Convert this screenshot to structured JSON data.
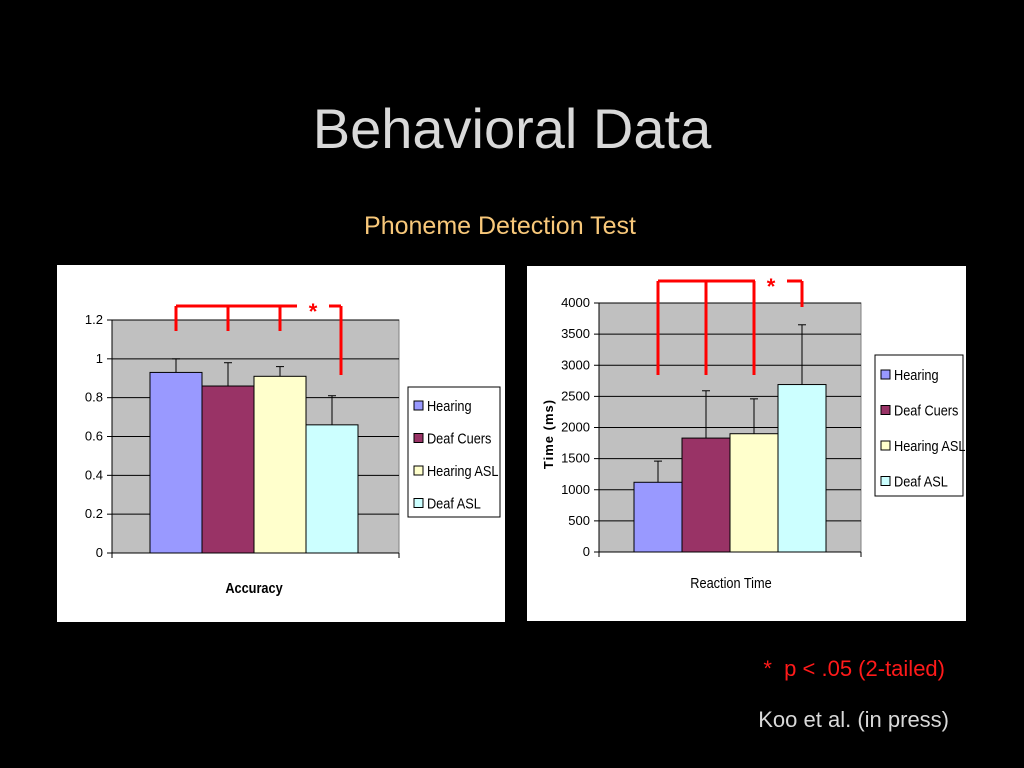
{
  "slide": {
    "title": "Behavioral Data",
    "subtitle": "Phoneme Detection Test",
    "footnote": "*  p < .05 (2-tailed)",
    "citation": "Koo et al. (in press)"
  },
  "colors": {
    "background": "#000000",
    "title": "#d9d9d9",
    "subtitle": "#f8c87a",
    "footnote": "#ff1a1a",
    "plot_area": "#c0c0c0",
    "significance": "#ff0000"
  },
  "chart_data": [
    {
      "type": "bar",
      "xlabel": "Accuracy",
      "ylabel": "",
      "ylim": [
        0,
        1.2
      ],
      "yticks": [
        "0",
        "0.2",
        "0.4",
        "0.6",
        "0.8",
        "1",
        "1.2"
      ],
      "grid": true,
      "legend_position": "right",
      "significance_marker": "*",
      "significance_groups": [
        "Hearing",
        "Deaf Cuers",
        "Hearing ASL",
        "Deaf ASL"
      ],
      "series": [
        {
          "name": "Hearing",
          "values": [
            0.93
          ],
          "error": [
            0.07
          ],
          "color": "#9999ff"
        },
        {
          "name": "Deaf Cuers",
          "values": [
            0.86
          ],
          "error": [
            0.12
          ],
          "color": "#993366"
        },
        {
          "name": "Hearing ASL",
          "values": [
            0.91
          ],
          "error": [
            0.05
          ],
          "color": "#ffffcc"
        },
        {
          "name": "Deaf ASL",
          "values": [
            0.66
          ],
          "error": [
            0.15
          ],
          "color": "#ccffff"
        }
      ]
    },
    {
      "type": "bar",
      "xlabel": "Reaction Time",
      "ylabel": "Time (ms)",
      "ylim": [
        0,
        4000
      ],
      "yticks": [
        "0",
        "500",
        "1000",
        "1500",
        "2000",
        "2500",
        "3000",
        "3500",
        "4000"
      ],
      "grid": true,
      "legend_position": "right",
      "significance_marker": "*",
      "significance_groups": [
        "Hearing",
        "Deaf Cuers",
        "Hearing ASL",
        "Deaf ASL"
      ],
      "series": [
        {
          "name": "Hearing",
          "values": [
            1120
          ],
          "error": [
            340
          ],
          "color": "#9999ff"
        },
        {
          "name": "Deaf Cuers",
          "values": [
            1830
          ],
          "error": [
            760
          ],
          "color": "#993366"
        },
        {
          "name": "Hearing ASL",
          "values": [
            1900
          ],
          "error": [
            560
          ],
          "color": "#ffffcc"
        },
        {
          "name": "Deaf ASL",
          "values": [
            2690
          ],
          "error": [
            960
          ],
          "color": "#ccffff"
        }
      ]
    }
  ]
}
